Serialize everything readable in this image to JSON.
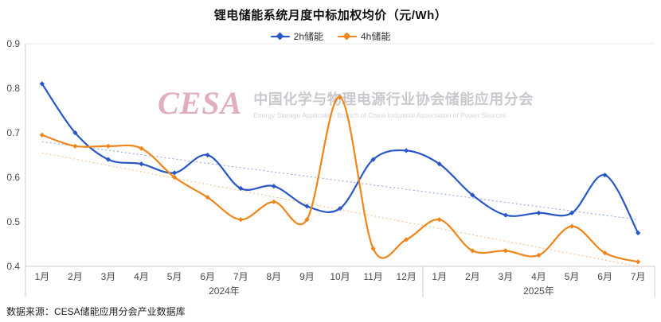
{
  "chart_data": {
    "type": "line",
    "title": "锂电储能系统月度中标加权均价（元/Wh）",
    "categories": [
      "1月",
      "2月",
      "3月",
      "4月",
      "5月",
      "6月",
      "7月",
      "8月",
      "9月",
      "10月",
      "11月",
      "12月",
      "1月",
      "2月",
      "3月",
      "4月",
      "5月",
      "6月",
      "7月"
    ],
    "x_groups": [
      {
        "label": "2024年",
        "count": 12
      },
      {
        "label": "2025年",
        "count": 7
      }
    ],
    "ylim": [
      0.4,
      0.9
    ],
    "yticks": [
      0.4,
      0.5,
      0.6,
      0.7,
      0.8,
      0.9
    ],
    "legend_position": "top-center",
    "grid": "top-border-only",
    "series": [
      {
        "name": "2h储能",
        "color": "#2757c8",
        "values": [
          0.81,
          0.7,
          0.64,
          0.63,
          0.61,
          0.65,
          0.575,
          0.58,
          0.535,
          0.53,
          0.64,
          0.66,
          0.63,
          0.56,
          0.515,
          0.52,
          0.52,
          0.605,
          0.475
        ],
        "trendline": [
          0.68,
          0.505
        ]
      },
      {
        "name": "4h储能",
        "color": "#f08519",
        "values": [
          0.695,
          0.67,
          0.67,
          0.665,
          0.6,
          0.555,
          0.505,
          0.545,
          0.505,
          0.78,
          0.44,
          0.46,
          0.505,
          0.435,
          0.435,
          0.425,
          0.49,
          0.43,
          0.41
        ],
        "trendline": [
          0.655,
          0.4
        ]
      }
    ]
  },
  "watermark": {
    "logo": "CESA",
    "cn": "中国化学与物理电源行业协会储能应用分会",
    "en": "Energy Storage Application Branch of China Industrial Association of Power Sources"
  },
  "source": "数据来源：CESA储能应用分会产业数据库"
}
